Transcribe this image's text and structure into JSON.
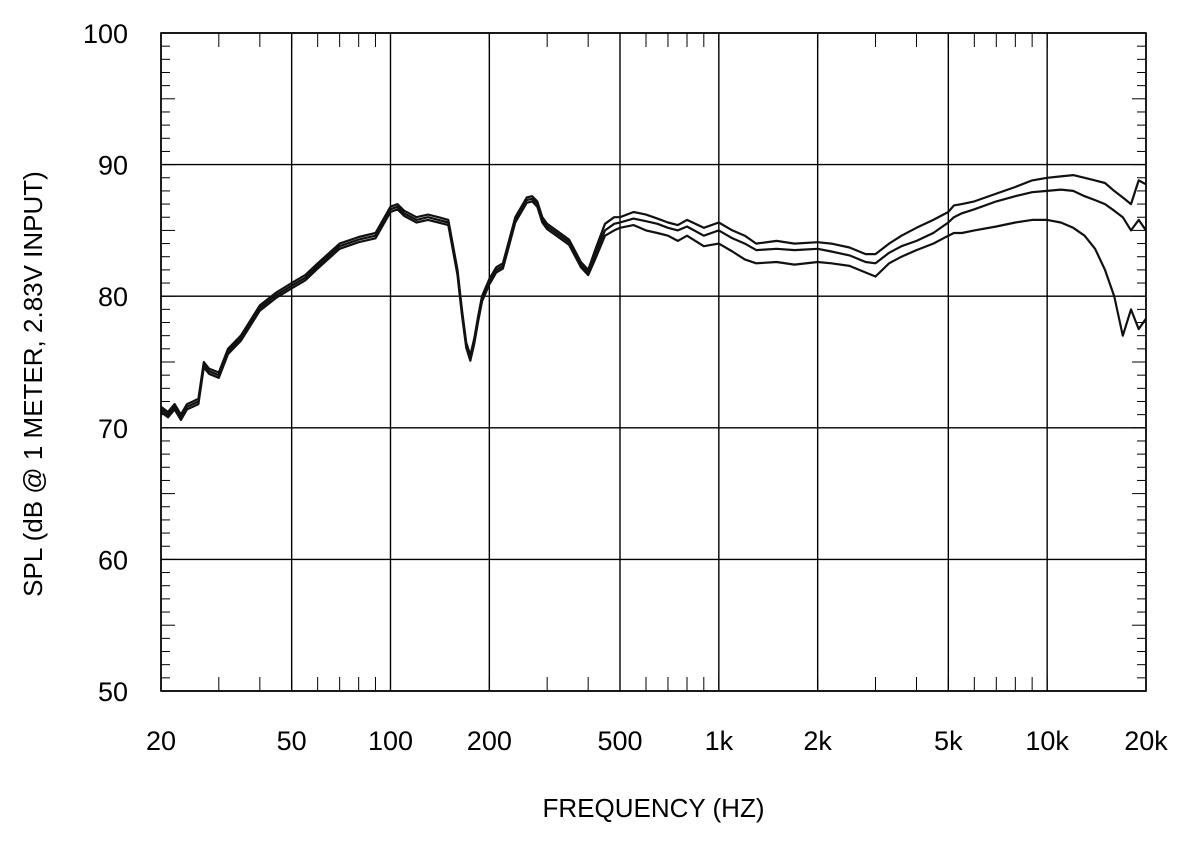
{
  "chart_data": {
    "type": "line",
    "title": "",
    "xlabel": "FREQUENCY  (HZ)",
    "ylabel": "SPL (dB @ 1 METER, 2.83V INPUT)",
    "xscale": "log",
    "xlim": [
      20,
      20000
    ],
    "ylim": [
      50,
      100
    ],
    "grid": true,
    "legend": "none",
    "x_ticks": [
      {
        "value": 20,
        "label": "20"
      },
      {
        "value": 50,
        "label": "50"
      },
      {
        "value": 100,
        "label": "100"
      },
      {
        "value": 200,
        "label": "200"
      },
      {
        "value": 500,
        "label": "500"
      },
      {
        "value": 1000,
        "label": "1k"
      },
      {
        "value": 2000,
        "label": "2k"
      },
      {
        "value": 5000,
        "label": "5k"
      },
      {
        "value": 10000,
        "label": "10k"
      },
      {
        "value": 20000,
        "label": "20k"
      }
    ],
    "y_ticks": [
      {
        "value": 50,
        "label": "50"
      },
      {
        "value": 60,
        "label": "60"
      },
      {
        "value": 70,
        "label": "70"
      },
      {
        "value": 80,
        "label": "80"
      },
      {
        "value": 90,
        "label": "90"
      },
      {
        "value": 100,
        "label": "100"
      }
    ],
    "series": [
      {
        "x": [
          20,
          21,
          22,
          23,
          24,
          25,
          26,
          27,
          28,
          30,
          32,
          35,
          40,
          45,
          50,
          55,
          60,
          70,
          80,
          90,
          100,
          105,
          110,
          120,
          130,
          140,
          150,
          160,
          165,
          170,
          175,
          180,
          185,
          190,
          200,
          210,
          220,
          240,
          260,
          270,
          280,
          290,
          300,
          320,
          350,
          380,
          400,
          420,
          450,
          480,
          500,
          550,
          600,
          650,
          700,
          750,
          800,
          900,
          1000,
          1100,
          1200,
          1300,
          1500,
          1700,
          2000,
          2200,
          2500,
          2800,
          3000,
          3300,
          3600,
          4000,
          4500,
          5000,
          5200,
          5500,
          6000,
          7000,
          8000,
          9000,
          10000,
          11000,
          12000,
          13000,
          14000,
          15000,
          16000,
          17000,
          18000,
          19000,
          20000
        ],
        "y": [
          71.6,
          71.2,
          71.8,
          71.0,
          71.8,
          72.0,
          72.2,
          75.0,
          74.5,
          74.2,
          76.0,
          77.0,
          79.3,
          80.3,
          81.0,
          81.6,
          82.5,
          84.0,
          84.5,
          84.8,
          86.8,
          87.0,
          86.5,
          86.0,
          86.2,
          86.0,
          85.8,
          82.0,
          79.0,
          76.5,
          75.5,
          76.8,
          78.5,
          80.0,
          81.3,
          82.2,
          82.5,
          86.0,
          87.5,
          87.6,
          87.2,
          86.0,
          85.5,
          85.0,
          84.3,
          82.6,
          82.0,
          83.5,
          85.5,
          86.0,
          86.0,
          86.4,
          86.2,
          85.9,
          85.6,
          85.4,
          85.8,
          85.2,
          85.6,
          85.0,
          84.6,
          84.0,
          84.2,
          84.0,
          84.1,
          84.0,
          83.7,
          83.2,
          83.2,
          84.0,
          84.6,
          85.2,
          85.8,
          86.4,
          86.9,
          87.0,
          87.2,
          87.8,
          88.3,
          88.8,
          89.0,
          89.1,
          89.2,
          89.0,
          88.8,
          88.6,
          88.0,
          87.5,
          87.0,
          88.8,
          88.5
        ]
      },
      {
        "x": [
          20,
          21,
          22,
          23,
          24,
          25,
          26,
          27,
          28,
          30,
          32,
          35,
          40,
          45,
          50,
          55,
          60,
          70,
          80,
          90,
          100,
          105,
          110,
          120,
          130,
          140,
          150,
          160,
          165,
          170,
          175,
          180,
          185,
          190,
          200,
          210,
          220,
          240,
          260,
          270,
          280,
          290,
          300,
          320,
          350,
          380,
          400,
          420,
          450,
          480,
          500,
          550,
          600,
          650,
          700,
          750,
          800,
          900,
          1000,
          1100,
          1200,
          1300,
          1500,
          1700,
          2000,
          2200,
          2500,
          2800,
          3000,
          3300,
          3600,
          4000,
          4500,
          5000,
          5200,
          5500,
          6000,
          7000,
          8000,
          9000,
          10000,
          11000,
          12000,
          13000,
          14000,
          15000,
          16000,
          17000,
          18000,
          19000,
          20000
        ],
        "y": [
          71.4,
          71.0,
          71.6,
          70.8,
          71.6,
          71.8,
          72.0,
          74.8,
          74.3,
          74.0,
          75.8,
          76.8,
          79.1,
          80.1,
          80.8,
          81.4,
          82.3,
          83.8,
          84.3,
          84.6,
          86.6,
          86.8,
          86.3,
          85.8,
          86.0,
          85.8,
          85.6,
          81.8,
          78.8,
          76.3,
          75.3,
          76.6,
          78.3,
          79.8,
          81.1,
          82.0,
          82.3,
          85.8,
          87.3,
          87.4,
          87.0,
          85.8,
          85.3,
          84.8,
          84.1,
          82.4,
          81.8,
          83.2,
          85.0,
          85.5,
          85.6,
          85.9,
          85.7,
          85.5,
          85.2,
          85.0,
          85.3,
          84.6,
          85.0,
          84.4,
          84.0,
          83.5,
          83.6,
          83.5,
          83.6,
          83.4,
          83.1,
          82.6,
          82.5,
          83.3,
          83.8,
          84.2,
          84.8,
          85.6,
          86.0,
          86.3,
          86.6,
          87.2,
          87.6,
          87.9,
          88.0,
          88.1,
          88.0,
          87.6,
          87.3,
          87.0,
          86.5,
          86.0,
          85.0,
          85.8,
          85.0
        ]
      },
      {
        "x": [
          20,
          21,
          22,
          23,
          24,
          25,
          26,
          27,
          28,
          30,
          32,
          35,
          40,
          45,
          50,
          55,
          60,
          70,
          80,
          90,
          100,
          105,
          110,
          120,
          130,
          140,
          150,
          160,
          165,
          170,
          175,
          180,
          185,
          190,
          200,
          210,
          220,
          240,
          260,
          270,
          280,
          290,
          300,
          320,
          350,
          380,
          400,
          420,
          450,
          480,
          500,
          550,
          600,
          650,
          700,
          750,
          800,
          900,
          1000,
          1100,
          1200,
          1300,
          1500,
          1700,
          2000,
          2200,
          2500,
          2800,
          3000,
          3300,
          3600,
          4000,
          4500,
          5000,
          5200,
          5500,
          6000,
          7000,
          8000,
          9000,
          10000,
          11000,
          12000,
          13000,
          14000,
          15000,
          16000,
          17000,
          18000,
          19000,
          20000
        ],
        "y": [
          71.2,
          70.8,
          71.4,
          70.6,
          71.4,
          71.6,
          71.8,
          74.6,
          74.1,
          73.8,
          75.6,
          76.6,
          78.9,
          79.9,
          80.6,
          81.2,
          82.1,
          83.6,
          84.1,
          84.4,
          86.4,
          86.6,
          86.1,
          85.6,
          85.8,
          85.6,
          85.4,
          81.6,
          78.6,
          76.1,
          75.1,
          76.4,
          78.1,
          79.6,
          80.9,
          81.8,
          82.1,
          85.6,
          87.1,
          87.2,
          86.8,
          85.6,
          85.1,
          84.6,
          83.9,
          82.2,
          81.6,
          82.8,
          84.6,
          85.0,
          85.2,
          85.4,
          85.0,
          84.8,
          84.6,
          84.2,
          84.6,
          83.8,
          84.0,
          83.4,
          82.8,
          82.5,
          82.6,
          82.4,
          82.6,
          82.5,
          82.3,
          81.8,
          81.5,
          82.5,
          83.0,
          83.5,
          84.0,
          84.6,
          84.8,
          84.8,
          85.0,
          85.3,
          85.6,
          85.8,
          85.8,
          85.6,
          85.2,
          84.6,
          83.6,
          82.0,
          80.0,
          77.0,
          79.0,
          77.5,
          78.3
        ]
      }
    ]
  }
}
